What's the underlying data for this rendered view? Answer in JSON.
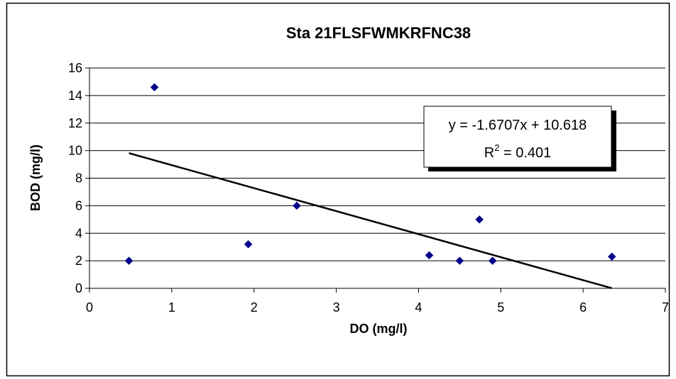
{
  "chart_data": {
    "type": "scatter",
    "title": "Sta 21FLSFWMKRFNC38",
    "xlabel": "DO (mg/l)",
    "ylabel": "BOD (mg/l)",
    "xlim": [
      0,
      7
    ],
    "ylim": [
      0,
      16
    ],
    "x_ticks": [
      "0",
      "1",
      "2",
      "3",
      "4",
      "5",
      "6",
      "7"
    ],
    "y_ticks": [
      "0",
      "2",
      "4",
      "6",
      "8",
      "10",
      "12",
      "14",
      "16"
    ],
    "grid": "horizontal",
    "marker": "diamond",
    "marker_color": "#00008B",
    "points": [
      {
        "x": 0.48,
        "y": 2.0
      },
      {
        "x": 0.79,
        "y": 14.6
      },
      {
        "x": 1.93,
        "y": 3.2
      },
      {
        "x": 2.52,
        "y": 6.0
      },
      {
        "x": 4.13,
        "y": 2.4
      },
      {
        "x": 4.5,
        "y": 2.0
      },
      {
        "x": 4.74,
        "y": 5.0
      },
      {
        "x": 4.9,
        "y": 2.0
      },
      {
        "x": 6.35,
        "y": 2.3
      }
    ],
    "trendline": {
      "slope": -1.6707,
      "intercept": 10.618,
      "x_range": [
        0.48,
        6.35
      ],
      "equation": "y = -1.6707x + 10.618",
      "r2_label": "R",
      "r2_sup": "2",
      "r2_value": " = 0.401"
    }
  }
}
